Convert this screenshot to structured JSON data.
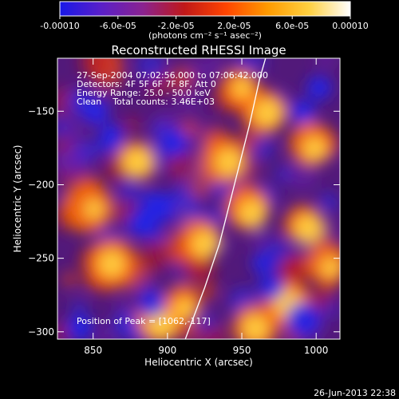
{
  "colorbar": {
    "tick_labels": [
      "-0.00010",
      "-6.0e-05",
      "-2.0e-05",
      "2.0e-05",
      "6.0e-05",
      "0.00010"
    ],
    "units_line": "(photons cm⁻² s⁻¹ asec⁻²)",
    "range": [
      -0.0001,
      0.0001
    ],
    "stops": [
      "#1818e8",
      "#5a1fc8",
      "#8a2290",
      "#c01818",
      "#ff4400",
      "#ff9a00",
      "#ffd040",
      "#ffffff"
    ]
  },
  "plot": {
    "title": "Reconstructed RHESSI Image",
    "info_lines": [
      "27-Sep-2004 07:02:56.000 to 07:06:42.000",
      "Detectors: 4F 5F 6F 7F 8F, Att 0",
      "Energy Range: 25.0 - 50.0 keV",
      "Clean    Total counts: 3.46E+03"
    ],
    "peak_label": "Position of Peak = [1062,-117]",
    "footer_timestamp": "26-Jun-2013 22:38"
  },
  "chart_data": {
    "type": "heatmap",
    "title": "Reconstructed RHESSI Image",
    "xlabel": "Heliocentric X (arcsec)",
    "ylabel": "Heliocentric Y (arcsec)",
    "xlim": [
      826,
      1016
    ],
    "ylim": [
      -305,
      -114
    ],
    "x_ticks": [
      850,
      900,
      950,
      1000
    ],
    "y_ticks": [
      -150,
      -200,
      -250,
      -300
    ],
    "x_tick_labels": [
      "850",
      "900",
      "950",
      "1000"
    ],
    "y_tick_labels": [
      "−150",
      "−200",
      "−250",
      "−300"
    ],
    "value_range": [
      -0.0001,
      0.0001
    ],
    "peak_position": [
      1062,
      -117
    ],
    "limb_curve": [
      [
        912,
        -305
      ],
      [
        925,
        -270
      ],
      [
        935,
        -240
      ],
      [
        945,
        -200
      ],
      [
        955,
        -160
      ],
      [
        962,
        -128
      ],
      [
        966,
        -114
      ]
    ]
  }
}
